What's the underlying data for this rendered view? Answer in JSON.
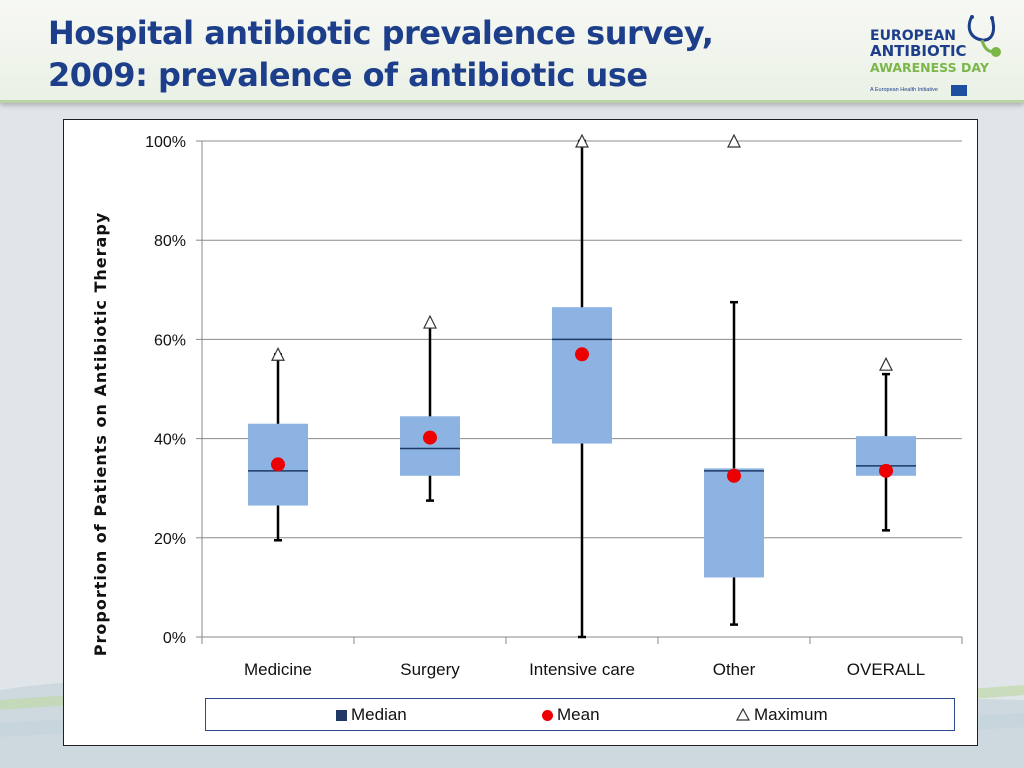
{
  "header": {
    "title_line1": "Hospital antibiotic prevalence survey,",
    "title_line2": "2009: prevalence of antibiotic use"
  },
  "logo": {
    "line1": "EUROPEAN",
    "line2": "ANTIBIOTIC",
    "line3": "AWARENESS DAY",
    "subtitle": "A European Health Initiative",
    "colors": {
      "blue": "#1d3e8a",
      "green": "#7ab648"
    }
  },
  "chart_data": {
    "type": "boxplot",
    "ylabel": "Proportion of Patients on Antibiotic Therapy",
    "xlabel": "",
    "ylim": [
      0,
      100
    ],
    "yticks": [
      0,
      20,
      40,
      60,
      80,
      100
    ],
    "ytick_labels": [
      "0%",
      "20%",
      "40%",
      "60%",
      "80%",
      "100%"
    ],
    "grid": true,
    "categories": [
      "Medicine",
      "Surgery",
      "Intensive care",
      "Other",
      "OVERALL"
    ],
    "boxes": [
      {
        "category": "Medicine",
        "whisker_low": 19.5,
        "q1": 26.5,
        "median": 33.5,
        "q3": 43,
        "whisker_high": 57,
        "mean": 34.8,
        "maximum": 57
      },
      {
        "category": "Surgery",
        "whisker_low": 27.5,
        "q1": 32.5,
        "median": 38,
        "q3": 44.5,
        "whisker_high": 63,
        "mean": 40.2,
        "maximum": 63.5
      },
      {
        "category": "Intensive care",
        "whisker_low": 0,
        "q1": 39,
        "median": 60,
        "q3": 66.5,
        "whisker_high": 100,
        "mean": 57,
        "maximum": 100
      },
      {
        "category": "Other",
        "whisker_low": 2.5,
        "q1": 12,
        "median": 33.5,
        "q3": 34,
        "whisker_high": 67.5,
        "mean": 32.5,
        "maximum": 100
      },
      {
        "category": "OVERALL",
        "whisker_low": 21.5,
        "q1": 32.5,
        "median": 34.5,
        "q3": 40.5,
        "whisker_high": 53,
        "mean": 33.5,
        "maximum": 55
      }
    ],
    "legend": {
      "position": "bottom",
      "items": [
        "Median",
        "Mean",
        "Maximum"
      ]
    },
    "colors": {
      "box": "#8db3e2",
      "median": "#1f3864",
      "mean": "#ee0000",
      "gridline": "#8c8c8c"
    }
  }
}
